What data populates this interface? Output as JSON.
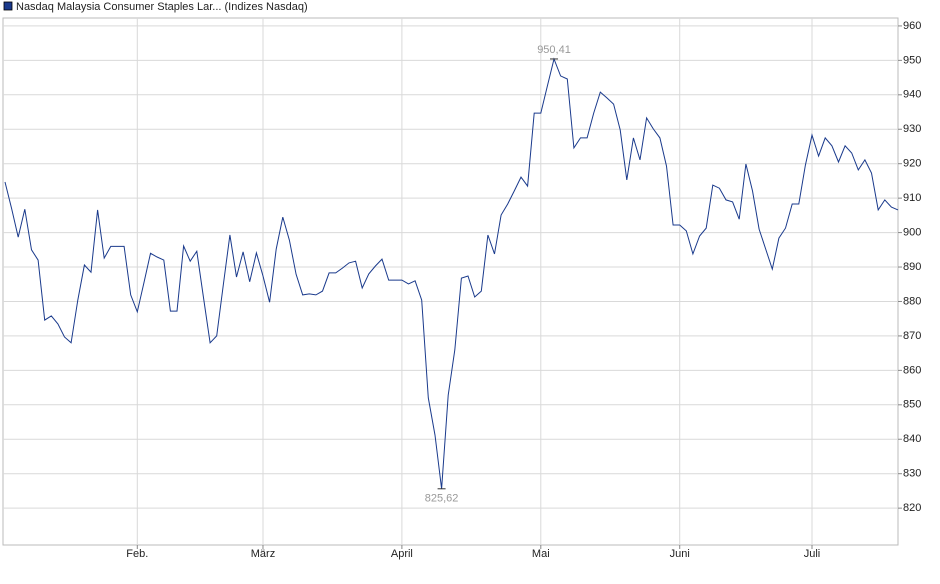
{
  "chart_data": {
    "type": "line",
    "title": "Nasdaq Malaysia Consumer Staples Lar... (Indizes Nasdaq)",
    "series": [
      {
        "name": "Nasdaq Malaysia Consumer Staples Lar... (Indizes Nasdaq)",
        "color": "#1a3a8c",
        "values": [
          914.7,
          907,
          898.7,
          906.8,
          895,
          892,
          874.6,
          875.8,
          873.5,
          869.7,
          868,
          880.4,
          890.6,
          888.5,
          906.6,
          892.6,
          896,
          896,
          896,
          881.9,
          877,
          885.4,
          894,
          892.9,
          892,
          877.2,
          877.2,
          896.1,
          891.7,
          894.6,
          881.3,
          868,
          870,
          884.8,
          899.3,
          887.1,
          894.4,
          885.7,
          894.1,
          887.4,
          879.8,
          895.2,
          904.5,
          897.8,
          887.9,
          881.9,
          882.2,
          881.9,
          883,
          888.3,
          888.3,
          889.7,
          891.2,
          891.7,
          883.9,
          888,
          890.3,
          892.3,
          886.2,
          886.2,
          886.2,
          885.1,
          886,
          880.4,
          852,
          841.2,
          825.62,
          852.8,
          865.9,
          886.8,
          887.4,
          881.3,
          883,
          899.3,
          893.8,
          905.1,
          908.3,
          912.1,
          916.1,
          913.5,
          934.7,
          934.7,
          942.6,
          950.41,
          945.5,
          944.6,
          924.6,
          927.5,
          927.5,
          934.7,
          940.8,
          939.1,
          937.3,
          929.8,
          915.3,
          927.5,
          921.1,
          933.3,
          930.1,
          927.5,
          919.3,
          902.2,
          902.2,
          900.5,
          893.8,
          899,
          901.3,
          913.8,
          912.9,
          909.5,
          908.9,
          903.9,
          919.9,
          912.1,
          901,
          895.2,
          889.4,
          898.4,
          901.3,
          908.3,
          908.3,
          919.6,
          928.3,
          922.2,
          927.5,
          925.2,
          920.5,
          925.2,
          923.1,
          918.2,
          921.1,
          917.3,
          906.6,
          909.5,
          907.4,
          906.6
        ],
        "value_labels": [
          null,
          null,
          null,
          null,
          null,
          null,
          null,
          null,
          null,
          null,
          null,
          null,
          null,
          null,
          null,
          null,
          null,
          null,
          null,
          null,
          null,
          null,
          null,
          null,
          null,
          null,
          null,
          null,
          null,
          null,
          null,
          null,
          null,
          null,
          null,
          null,
          null,
          null,
          null,
          null,
          null,
          null,
          null,
          null,
          null,
          null,
          null,
          null,
          null,
          null,
          null,
          null,
          null,
          null,
          null,
          null,
          null,
          null,
          null,
          null,
          null,
          null,
          null,
          null,
          null,
          null,
          "825,62",
          null,
          null,
          null,
          null,
          null,
          null,
          null,
          null,
          null,
          null,
          null,
          null,
          null,
          null,
          null,
          null,
          "950,41",
          null,
          null,
          null,
          null,
          null,
          null,
          null,
          null,
          null,
          null,
          null,
          null,
          null,
          null,
          null,
          null,
          null,
          null,
          null,
          null,
          null,
          null,
          null,
          null,
          null,
          null,
          null,
          null,
          null,
          null,
          null,
          null,
          null,
          null,
          null,
          null,
          null,
          null,
          null,
          null,
          null,
          null,
          null,
          null,
          null,
          null,
          null,
          null,
          null,
          null,
          null,
          null
        ]
      }
    ],
    "xlim": [
      0,
      135
    ],
    "xticks": [
      {
        "value": 20,
        "label": "Feb."
      },
      {
        "value": 39,
        "label": "März"
      },
      {
        "value": 60,
        "label": "April"
      },
      {
        "value": 81,
        "label": "Mai"
      },
      {
        "value": 102,
        "label": "Juni"
      },
      {
        "value": 122,
        "label": "Juli"
      }
    ],
    "ylim": [
      809.3,
      962.3
    ],
    "yticks": [
      820,
      830,
      840,
      850,
      860,
      870,
      880,
      890,
      900,
      910,
      920,
      930,
      940,
      950,
      960
    ],
    "grid": true
  }
}
